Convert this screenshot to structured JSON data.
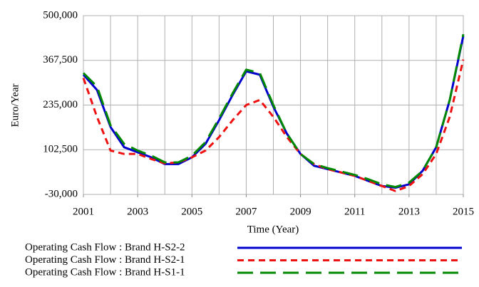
{
  "chart_data": {
    "type": "line",
    "y_axis_label": "Euro/Year",
    "x_axis_label": "Time (Year)",
    "x": [
      2001,
      2001.5,
      2002,
      2002.5,
      2003,
      2003.5,
      2004,
      2004.5,
      2005,
      2005.5,
      2006,
      2006.5,
      2007,
      2007.5,
      2008,
      2008.5,
      2009,
      2009.5,
      2010,
      2010.5,
      2011,
      2011.5,
      2012,
      2012.5,
      2013,
      2013.5,
      2014,
      2014.5,
      2015
    ],
    "series": [
      {
        "name": "Operating Cash Flow : Brand H-S2-2",
        "color": "#0000cc",
        "dash": "solid",
        "values": [
          325000,
          280000,
          170000,
          110000,
          95000,
          80000,
          60000,
          60000,
          80000,
          120000,
          190000,
          265000,
          335000,
          325000,
          230000,
          150000,
          90000,
          55000,
          45000,
          35000,
          25000,
          10000,
          -5000,
          -10000,
          0,
          40000,
          110000,
          250000,
          440000
        ]
      },
      {
        "name": "Operating Cash Flow : Brand H-S2-1",
        "color": "#ee1111",
        "dash": "short",
        "values": [
          315000,
          200000,
          100000,
          90000,
          90000,
          75000,
          62000,
          65000,
          80000,
          100000,
          140000,
          190000,
          235000,
          250000,
          200000,
          140000,
          90000,
          60000,
          45000,
          35000,
          25000,
          10000,
          -5000,
          -20000,
          -5000,
          30000,
          90000,
          200000,
          370000
        ]
      },
      {
        "name": "Operating Cash Flow : Brand H-S1-1",
        "color": "#008800",
        "dash": "long",
        "values": [
          330000,
          290000,
          175000,
          120000,
          100000,
          85000,
          65000,
          65000,
          85000,
          125000,
          195000,
          270000,
          340000,
          330000,
          235000,
          150000,
          90000,
          60000,
          48000,
          38000,
          28000,
          15000,
          0,
          -8000,
          5000,
          40000,
          110000,
          250000,
          445000
        ]
      }
    ],
    "xlim": [
      2001,
      2015
    ],
    "xticks": [
      2001,
      2003,
      2005,
      2007,
      2009,
      2011,
      2013,
      2015
    ],
    "x_grid_step": 1,
    "ylim": [
      -30000,
      500000
    ],
    "yticks": [
      {
        "value": -30000,
        "label": "-30,000"
      },
      {
        "value": 102500,
        "label": "102,500"
      },
      {
        "value": 235000,
        "label": "235,000"
      },
      {
        "value": 367500,
        "label": "367,500"
      },
      {
        "value": 500000,
        "label": "500,000"
      }
    ],
    "grid": true
  }
}
